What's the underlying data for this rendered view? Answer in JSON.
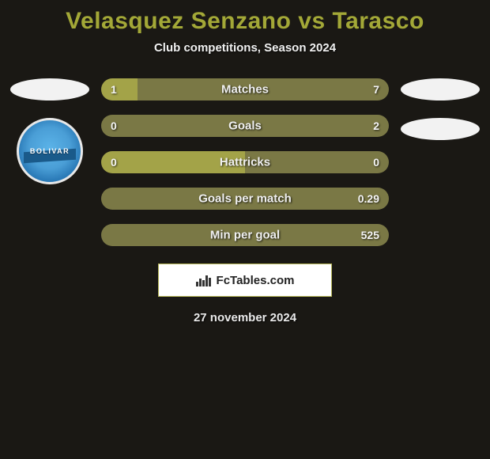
{
  "title": "Velasquez Senzano vs Tarasco",
  "subtitle": "Club competitions, Season 2024",
  "date": "27 november 2024",
  "attribution": "FcTables.com",
  "left_player": {
    "club_badge_text": "BOLIVAR"
  },
  "colors": {
    "title": "#a3a837",
    "background": "#1a1814",
    "bar_left": "#a3a348",
    "bar_right": "#7a7845",
    "text": "#f0f0f0"
  },
  "stats": [
    {
      "label": "Matches",
      "left_val": "1",
      "right_val": "7",
      "left_pct": 12.5,
      "show_left": true
    },
    {
      "label": "Goals",
      "left_val": "0",
      "right_val": "2",
      "left_pct": 0,
      "show_left": true
    },
    {
      "label": "Hattricks",
      "left_val": "0",
      "right_val": "0",
      "left_pct": 50,
      "show_left": true
    },
    {
      "label": "Goals per match",
      "left_val": "",
      "right_val": "0.29",
      "left_pct": 0,
      "show_left": false
    },
    {
      "label": "Min per goal",
      "left_val": "",
      "right_val": "525",
      "left_pct": 0,
      "show_left": false
    }
  ]
}
